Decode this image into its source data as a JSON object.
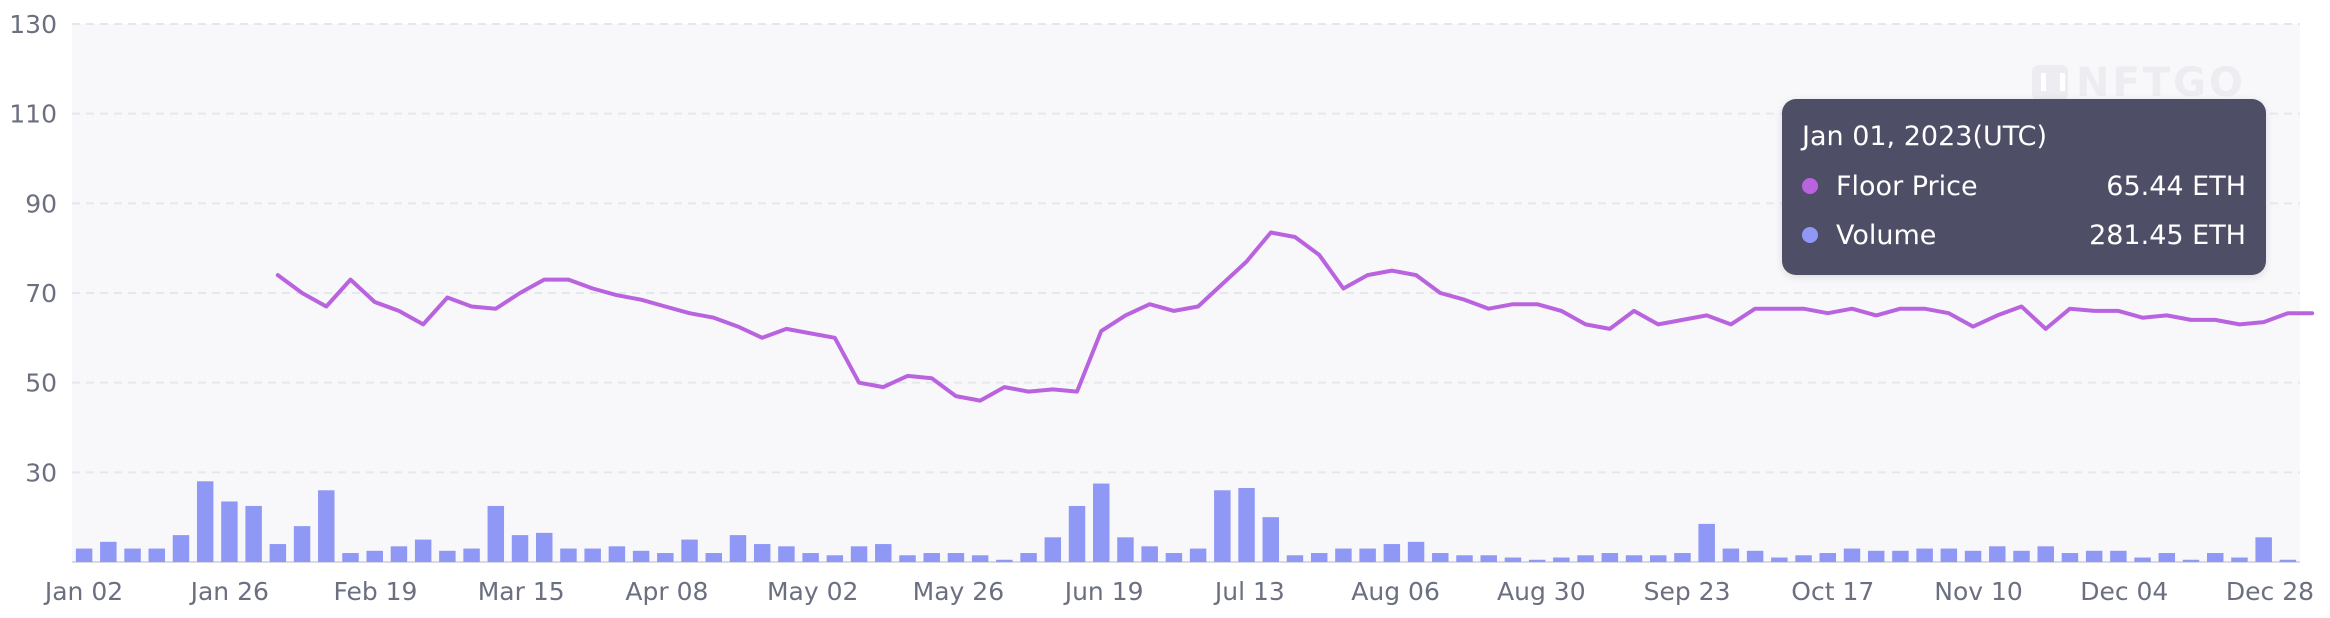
{
  "watermark": "NFTGO",
  "tooltip": {
    "date": "Jan 01, 2023(UTC)",
    "rows": [
      {
        "label": "Floor Price",
        "value": "65.44 ETH",
        "color": "#b964de"
      },
      {
        "label": "Volume",
        "value": "281.45 ETH",
        "color": "#8f98f5"
      }
    ]
  },
  "colors": {
    "floor_line": "#b964de",
    "volume_bar": "#8f98f5",
    "plot_bg": "#f8f8fb",
    "grid": "#e6e6ee",
    "tick_text": "#6b6f80"
  },
  "chart_data": {
    "type": "bar",
    "x_tick_labels": [
      "Jan 02",
      "Jan 26",
      "Feb 19",
      "Mar 15",
      "Apr 08",
      "May 02",
      "May 26",
      "Jun 19",
      "Jul 13",
      "Aug 06",
      "Aug 30",
      "Sep 23",
      "Oct 17",
      "Nov 10",
      "Dec 04",
      "Dec 28"
    ],
    "y_ticks": [
      30,
      50,
      70,
      90,
      110,
      130
    ],
    "ylim": [
      10,
      130
    ],
    "grid": true,
    "series": [
      {
        "name": "Floor Price",
        "type": "line",
        "values": [
          null,
          null,
          null,
          null,
          null,
          null,
          null,
          null,
          74,
          70,
          67,
          73,
          68,
          66,
          63,
          69,
          67,
          66.5,
          70,
          73,
          73,
          71,
          69.5,
          68.5,
          67,
          65.5,
          64.5,
          62.5,
          60,
          62,
          61,
          60,
          50,
          49,
          51.5,
          51,
          47,
          46,
          49,
          48,
          48.5,
          48,
          61.5,
          65,
          67.5,
          66,
          67,
          72,
          77,
          83.5,
          82.5,
          78.5,
          71,
          74,
          75,
          74,
          70,
          68.5,
          66.5,
          67.5,
          67.5,
          66,
          63,
          62,
          66,
          63,
          64,
          65,
          63,
          66.5,
          66.5,
          66.5,
          65.5,
          66.5,
          65,
          66.5,
          66.5,
          65.5,
          62.5,
          65,
          67,
          62,
          66.5,
          66,
          66,
          64.5,
          65,
          64,
          64,
          63,
          63.5,
          65.5,
          65.5
        ]
      },
      {
        "name": "Volume",
        "type": "bar",
        "values": [
          13,
          14.5,
          13,
          13,
          16,
          28,
          23.5,
          22.5,
          14,
          18,
          26,
          12,
          12.5,
          13.5,
          15,
          12.5,
          13,
          22.5,
          16,
          16.5,
          13,
          13,
          13.5,
          12.5,
          12,
          15,
          12,
          16,
          14,
          13.5,
          12,
          11.5,
          13.5,
          14,
          11.5,
          12,
          12,
          11.5,
          10.5,
          12,
          15.5,
          22.5,
          27.5,
          15.5,
          13.5,
          12,
          13,
          26,
          26.5,
          20,
          11.5,
          12,
          13,
          13,
          14,
          14.5,
          12,
          11.5,
          11.5,
          11,
          10.5,
          11,
          11.5,
          12,
          11.5,
          11.5,
          12,
          18.5,
          13,
          12.5,
          11,
          11.5,
          12,
          13,
          12.5,
          12.5,
          13,
          13,
          12.5,
          13.5,
          12.5,
          13.5,
          12,
          12.5,
          12.5,
          11,
          12,
          10.5,
          12,
          11,
          15.5,
          10.5
        ]
      }
    ]
  }
}
